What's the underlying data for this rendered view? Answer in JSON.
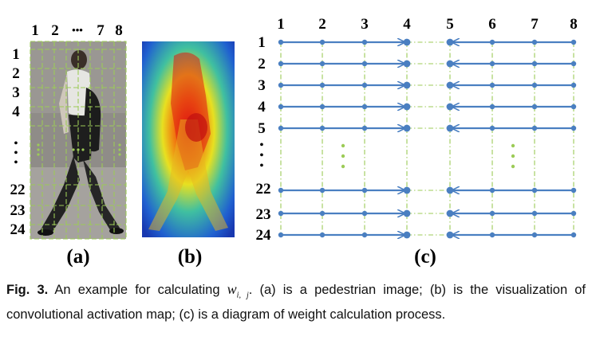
{
  "panel_a": {
    "col_labels": [
      "1",
      "2",
      "•••",
      "7",
      "8"
    ],
    "row_labels": [
      "1",
      "2",
      "3",
      "4",
      "•",
      "•",
      "•",
      "22",
      "23",
      "24"
    ],
    "label": "(a)",
    "image": "pedestrian-photo"
  },
  "panel_b": {
    "label": "(b)",
    "image": "activation-heatmap"
  },
  "panel_c": {
    "col_labels": [
      "1",
      "2",
      "3",
      "4",
      "5",
      "6",
      "7",
      "8"
    ],
    "row_labels": [
      "1",
      "2",
      "3",
      "4",
      "5",
      "•",
      "•",
      "•",
      "22",
      "23",
      "24"
    ],
    "label": "(c)",
    "line_color": "#4a7fc1",
    "grid_color": "#9ccb57"
  },
  "caption": {
    "fig_label": "Fig. 3.",
    "text_before": "An example for calculating ",
    "var": "w",
    "var_sub": "i, j",
    "text_after": ". (a) is a pedestrian image; (b) is the visualization of convolutional activation map; (c) is a diagram of weight calculation process."
  }
}
